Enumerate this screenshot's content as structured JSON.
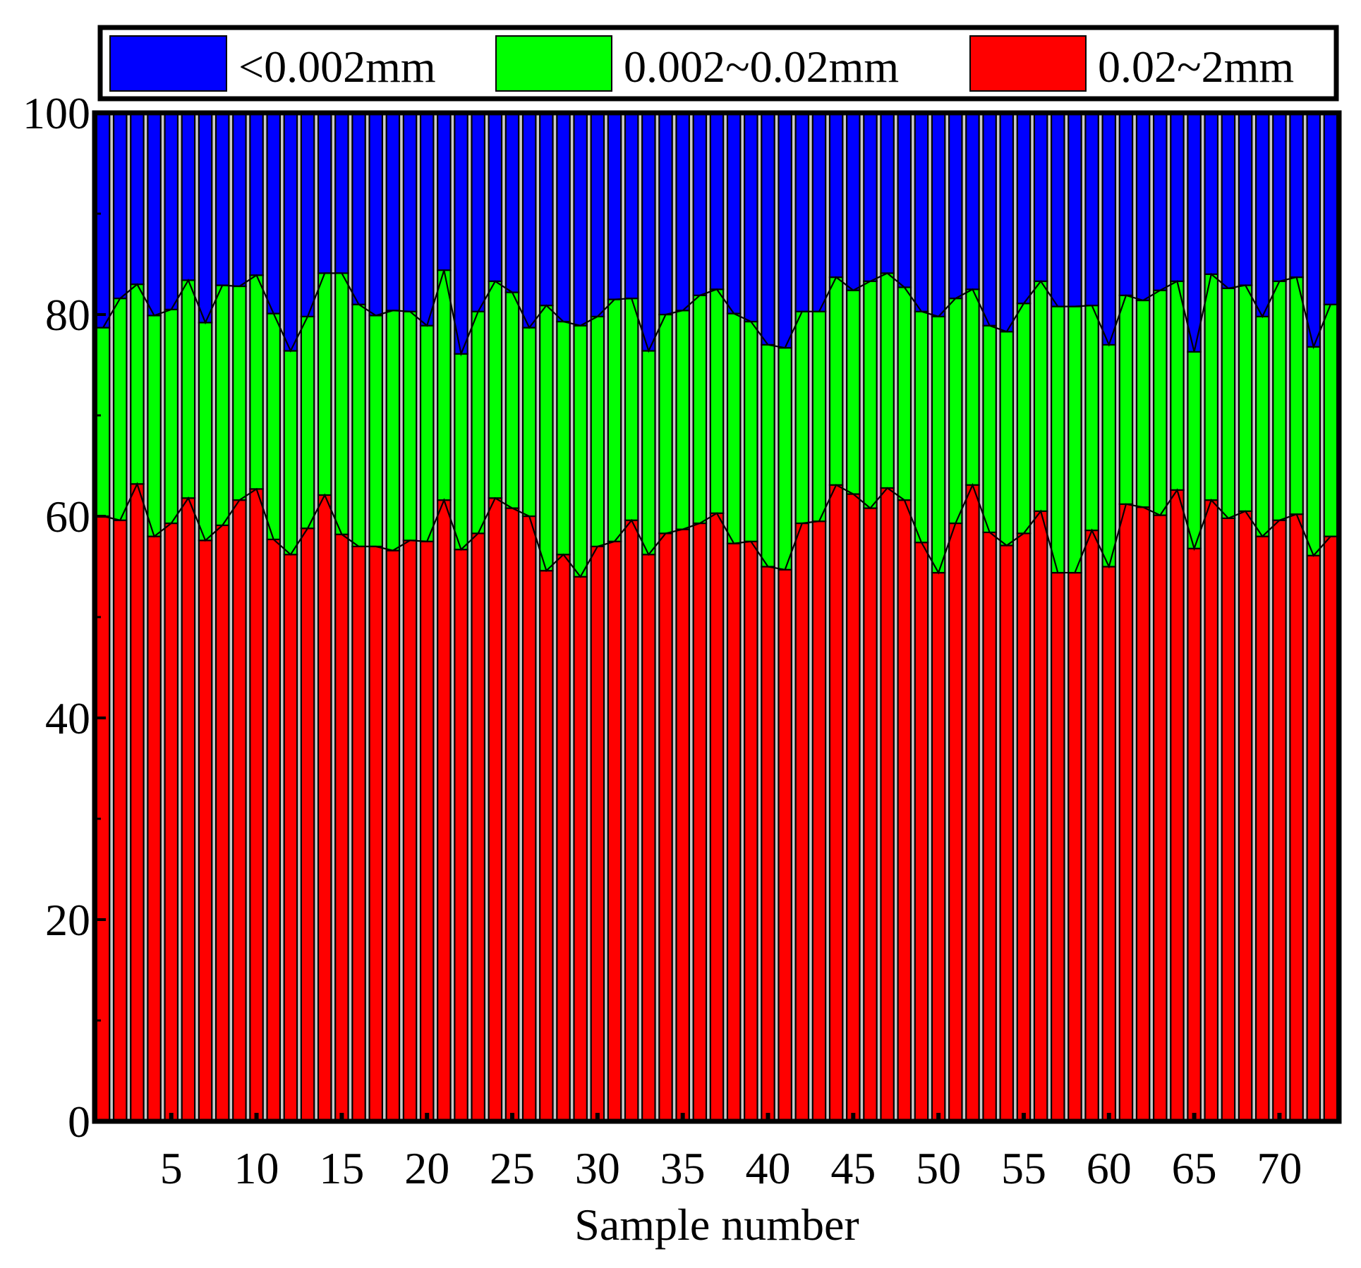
{
  "chart_data": {
    "type": "bar",
    "stacked": true,
    "title": "",
    "xlabel": "Sample number",
    "ylabel": "",
    "xlim": [
      1,
      73
    ],
    "ylim": [
      0,
      100
    ],
    "x_ticks": [
      5,
      10,
      15,
      20,
      25,
      30,
      35,
      40,
      45,
      50,
      55,
      60,
      65,
      70
    ],
    "y_ticks": [
      0,
      20,
      40,
      60,
      80,
      100
    ],
    "legend_position": "top",
    "grid": false,
    "categories": [
      1,
      2,
      3,
      4,
      5,
      6,
      7,
      8,
      9,
      10,
      11,
      12,
      13,
      14,
      15,
      16,
      17,
      18,
      19,
      20,
      21,
      22,
      23,
      24,
      25,
      26,
      27,
      28,
      29,
      30,
      31,
      32,
      33,
      34,
      35,
      36,
      37,
      38,
      39,
      40,
      41,
      42,
      43,
      44,
      45,
      46,
      47,
      48,
      49,
      50,
      51,
      52,
      53,
      54,
      55,
      56,
      57,
      58,
      59,
      60,
      61,
      62,
      63,
      64,
      65,
      66,
      67,
      68,
      69,
      70,
      71,
      72,
      73
    ],
    "series": [
      {
        "name": "0.02~2mm",
        "color": "#ff0000",
        "values": [
          60,
          59.6,
          63.2,
          58,
          59.3,
          61.8,
          57.6,
          59.1,
          61.6,
          62.7,
          57.7,
          56.2,
          58.8,
          62.1,
          58.2,
          57,
          57,
          56.6,
          57.6,
          57.5,
          61.6,
          56.7,
          58.3,
          61.8,
          60.8,
          60,
          54.6,
          56.2,
          54,
          57,
          57.5,
          59.6,
          56.2,
          58.3,
          58.7,
          59.3,
          60.3,
          57.3,
          57.5,
          55,
          54.7,
          59.3,
          59.5,
          63.1,
          62.2,
          60.8,
          62.8,
          61.6,
          57.4,
          54.4,
          59.3,
          63.1,
          58.4,
          57.1,
          58.3,
          60.5,
          54.4,
          54.4,
          58.6,
          55,
          61.2,
          60.9,
          60.1,
          62.6,
          56.8,
          61.6,
          59.8,
          60.5,
          58,
          59.6,
          60.2,
          56.1,
          58
        ]
      },
      {
        "name": "0.002~0.02mm",
        "color": "#00ff00",
        "values": [
          18.7,
          22,
          19.8,
          21.9,
          21.2,
          21.6,
          21.6,
          23.8,
          21.2,
          21.2,
          22.4,
          20.2,
          21,
          22,
          25.9,
          24,
          22.9,
          23.8,
          22.7,
          21.4,
          22.8,
          19.4,
          22,
          21.5,
          21.4,
          18.7,
          26.3,
          23.1,
          24.9,
          22.8,
          24,
          22,
          20.2,
          21.7,
          21.7,
          22.6,
          22.2,
          22.8,
          21.8,
          22,
          22,
          21,
          20.8,
          20.6,
          20.2,
          22.5,
          21.3,
          21.1,
          22.9,
          25.4,
          22.3,
          19.4,
          20.5,
          21.2,
          22.8,
          22.8,
          26.4,
          26.4,
          22.3,
          22,
          20.7,
          20.5,
          22.3,
          20.7,
          19.5,
          22.4,
          22.8,
          22.4,
          21.8,
          23.7,
          23.5,
          20.7,
          23
        ]
      },
      {
        "name": "<0.002mm",
        "color": "#0000ff",
        "values": [
          21.3,
          18.4,
          17,
          20.1,
          19.5,
          16.6,
          20.8,
          17.1,
          17.2,
          16.1,
          19.9,
          23.6,
          20.2,
          15.9,
          15.9,
          19,
          20.1,
          19.6,
          19.7,
          21.1,
          15.6,
          23.9,
          19.7,
          16.7,
          17.8,
          21.3,
          19.1,
          20.7,
          21.1,
          20.2,
          18.5,
          18.4,
          23.6,
          20,
          19.6,
          18.1,
          17.5,
          19.9,
          20.7,
          23,
          23.3,
          19.7,
          19.7,
          16.3,
          17.6,
          16.7,
          15.9,
          17.3,
          19.7,
          20.2,
          18.4,
          17.5,
          21.1,
          21.7,
          18.9,
          16.7,
          19.2,
          19.2,
          19.1,
          23,
          18.1,
          18.6,
          17.6,
          16.7,
          23.7,
          16,
          17.4,
          17.1,
          20.2,
          16.7,
          16.3,
          23.2,
          19
        ]
      }
    ],
    "legend": [
      {
        "label": "<0.002mm",
        "color": "#0000ff"
      },
      {
        "label": "0.002~0.02mm",
        "color": "#00ff00"
      },
      {
        "label": "0.02~2mm",
        "color": "#ff0000"
      }
    ]
  }
}
